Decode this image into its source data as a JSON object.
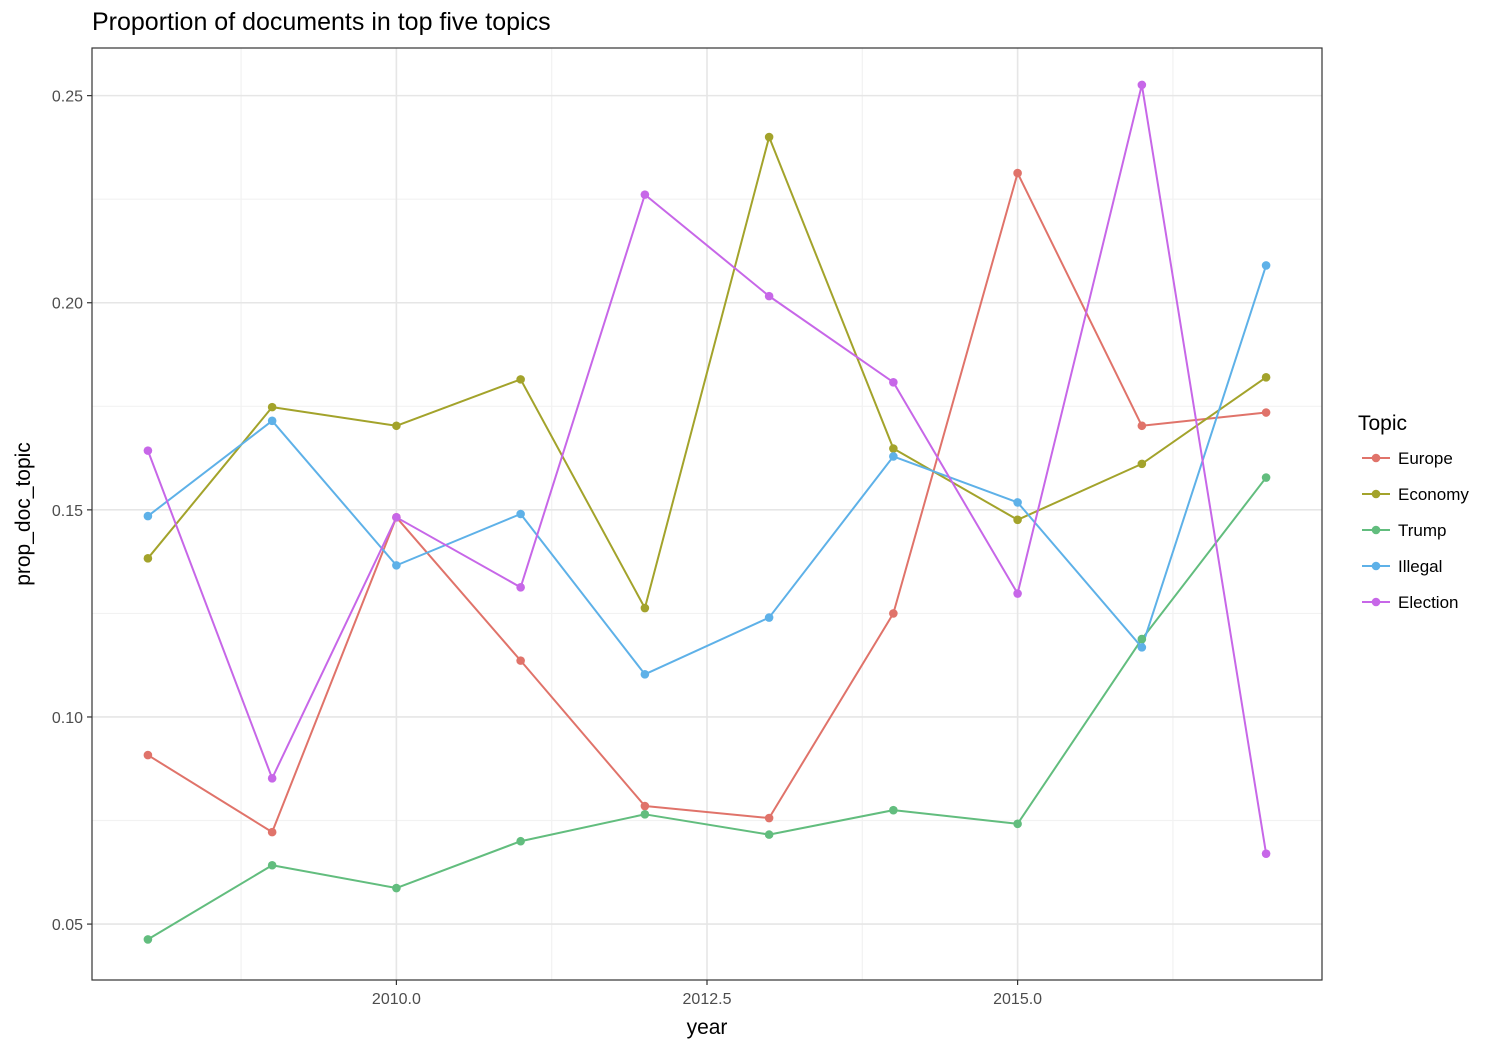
{
  "chart_data": {
    "type": "line",
    "title": "Proportion of documents in top five topics",
    "xlabel": "year",
    "ylabel": "prop_doc_topic",
    "x": [
      2008,
      2009,
      2010,
      2011,
      2012,
      2013,
      2014,
      2015,
      2016,
      2017
    ],
    "xlim": [
      2007.55,
      2017.45
    ],
    "ylim": [
      0.0365,
      0.2615
    ],
    "x_ticks": [
      2010.0,
      2012.5,
      2015.0
    ],
    "x_tick_labels": [
      "2010.0",
      "2012.5",
      "2015.0"
    ],
    "y_ticks": [
      0.05,
      0.1,
      0.15,
      0.2,
      0.25
    ],
    "y_tick_labels": [
      "0.05",
      "0.10",
      "0.15",
      "0.20",
      "0.25"
    ],
    "grid": true,
    "legend_title": "Topic",
    "legend_position": "right",
    "series": [
      {
        "name": "Europe",
        "color": "#e0736a",
        "values": [
          0.0908,
          0.0722,
          0.1482,
          0.1136,
          0.0785,
          0.0756,
          0.125,
          0.2313,
          0.1703,
          0.1735
        ]
      },
      {
        "name": "Economy",
        "color": "#a3a32b",
        "values": [
          0.1383,
          0.1748,
          0.1703,
          0.1815,
          0.1263,
          0.24,
          0.1648,
          0.1476,
          0.1611,
          0.182
        ]
      },
      {
        "name": "Trump",
        "color": "#62bd7e",
        "values": [
          0.0463,
          0.0642,
          0.0587,
          0.07,
          0.0765,
          0.0716,
          0.0775,
          0.0742,
          0.1188,
          0.1578
        ]
      },
      {
        "name": "Illegal",
        "color": "#5eb1e8",
        "values": [
          0.1485,
          0.1715,
          0.1366,
          0.149,
          0.1103,
          0.124,
          0.1629,
          0.1518,
          0.1168,
          0.209
        ]
      },
      {
        "name": "Election",
        "color": "#c767e8",
        "values": [
          0.1643,
          0.0852,
          0.1482,
          0.1313,
          0.2261,
          0.2016,
          0.1808,
          0.1298,
          0.2526,
          0.067
        ]
      }
    ]
  }
}
